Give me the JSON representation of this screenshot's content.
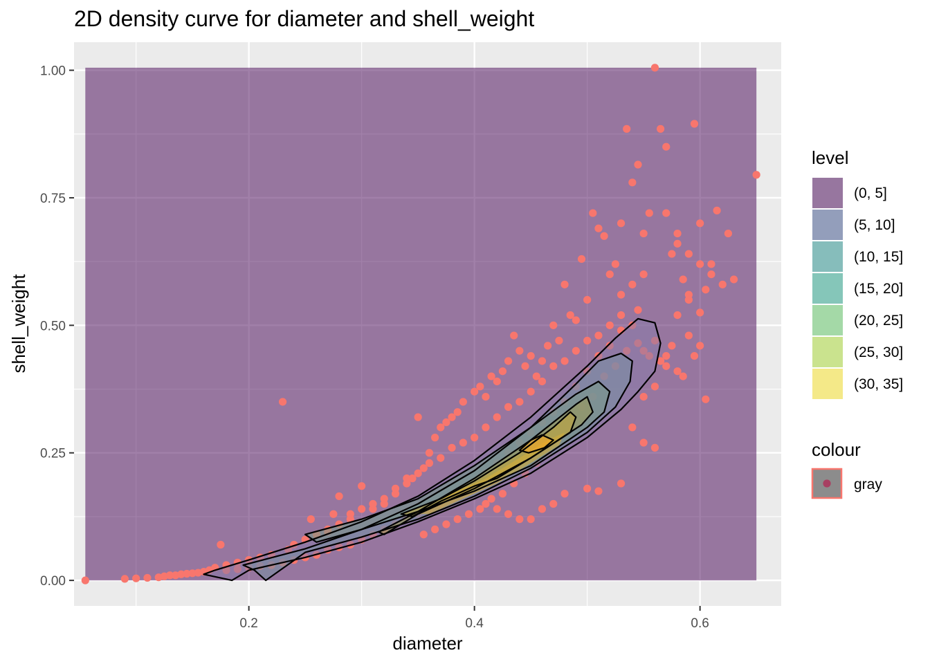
{
  "chart_data": {
    "type": "scatter",
    "title": "2D density curve for diameter and shell_weight",
    "xlabel": "diameter",
    "ylabel": "shell_weight",
    "xlim": [
      0.045,
      0.672
    ],
    "ylim": [
      -0.05,
      1.055
    ],
    "x_ticks": [
      0.2,
      0.4,
      0.6
    ],
    "x_tick_labels": [
      "0.2",
      "0.4",
      "0.6"
    ],
    "y_ticks": [
      0.0,
      0.25,
      0.5,
      0.75,
      1.0
    ],
    "y_tick_labels": [
      "0.00",
      "0.25",
      "0.50",
      "0.75",
      "1.00"
    ],
    "grid": true,
    "panel_background": "#ebebeb",
    "legends": [
      {
        "title": "level",
        "placement": "right",
        "entries": [
          {
            "label": "(0, 5]",
            "color": "#440154"
          },
          {
            "label": "(5, 10]",
            "color": "#3b528b"
          },
          {
            "label": "(10, 15]",
            "color": "#21908c"
          },
          {
            "label": "(15, 20]",
            "color": "#1fa187"
          },
          {
            "label": "(20, 25]",
            "color": "#5dc863"
          },
          {
            "label": "(25, 30]",
            "color": "#aadc32"
          },
          {
            "label": "(30, 35]",
            "color": "#fde725"
          }
        ]
      },
      {
        "title": "colour",
        "placement": "right",
        "entries": [
          {
            "label": "gray",
            "color": "#f8766d"
          }
        ]
      }
    ],
    "density_band": {
      "x_range": [
        0.055,
        0.65
      ],
      "y_range": [
        0.0,
        1.005
      ],
      "color": "#440154",
      "opacity": 0.5
    },
    "point_color": "#f8766d",
    "contours": [
      [
        [
          0.17,
          0.02
        ],
        [
          0.2,
          0.04
        ],
        [
          0.25,
          0.075
        ],
        [
          0.3,
          0.115
        ],
        [
          0.35,
          0.165
        ],
        [
          0.4,
          0.235
        ],
        [
          0.45,
          0.32
        ],
        [
          0.5,
          0.42
        ],
        [
          0.525,
          0.475
        ],
        [
          0.545,
          0.513
        ],
        [
          0.56,
          0.505
        ],
        [
          0.565,
          0.465
        ],
        [
          0.56,
          0.41
        ],
        [
          0.545,
          0.37
        ],
        [
          0.53,
          0.335
        ],
        [
          0.5,
          0.28
        ],
        [
          0.45,
          0.21
        ],
        [
          0.4,
          0.16
        ],
        [
          0.35,
          0.115
        ],
        [
          0.3,
          0.075
        ],
        [
          0.25,
          0.045
        ],
        [
          0.2,
          0.02
        ],
        [
          0.185,
          0.0
        ],
        [
          0.16,
          0.012
        ],
        [
          0.17,
          0.02
        ]
      ],
      [
        [
          0.195,
          0.03
        ],
        [
          0.25,
          0.062
        ],
        [
          0.3,
          0.1
        ],
        [
          0.35,
          0.15
        ],
        [
          0.4,
          0.215
        ],
        [
          0.45,
          0.3
        ],
        [
          0.49,
          0.385
        ],
        [
          0.51,
          0.43
        ],
        [
          0.53,
          0.445
        ],
        [
          0.54,
          0.43
        ],
        [
          0.538,
          0.39
        ],
        [
          0.525,
          0.34
        ],
        [
          0.5,
          0.29
        ],
        [
          0.45,
          0.22
        ],
        [
          0.4,
          0.165
        ],
        [
          0.35,
          0.12
        ],
        [
          0.3,
          0.085
        ],
        [
          0.25,
          0.055
        ],
        [
          0.215,
          0.0
        ],
        [
          0.205,
          0.02
        ],
        [
          0.195,
          0.03
        ]
      ],
      [
        [
          0.25,
          0.09
        ],
        [
          0.3,
          0.12
        ],
        [
          0.35,
          0.16
        ],
        [
          0.4,
          0.225
        ],
        [
          0.45,
          0.3
        ],
        [
          0.49,
          0.365
        ],
        [
          0.51,
          0.39
        ],
        [
          0.52,
          0.37
        ],
        [
          0.515,
          0.33
        ],
        [
          0.5,
          0.3
        ],
        [
          0.45,
          0.225
        ],
        [
          0.4,
          0.175
        ],
        [
          0.35,
          0.135
        ],
        [
          0.3,
          0.1
        ],
        [
          0.26,
          0.075
        ],
        [
          0.25,
          0.09
        ]
      ],
      [
        [
          0.315,
          0.095
        ],
        [
          0.35,
          0.135
        ],
        [
          0.4,
          0.2
        ],
        [
          0.45,
          0.275
        ],
        [
          0.49,
          0.345
        ],
        [
          0.5,
          0.36
        ],
        [
          0.505,
          0.33
        ],
        [
          0.495,
          0.305
        ],
        [
          0.45,
          0.24
        ],
        [
          0.4,
          0.18
        ],
        [
          0.35,
          0.13
        ],
        [
          0.32,
          0.09
        ],
        [
          0.315,
          0.095
        ]
      ],
      [
        [
          0.335,
          0.13
        ],
        [
          0.37,
          0.16
        ],
        [
          0.4,
          0.195
        ],
        [
          0.44,
          0.25
        ],
        [
          0.47,
          0.3
        ],
        [
          0.485,
          0.33
        ],
        [
          0.49,
          0.32
        ],
        [
          0.485,
          0.29
        ],
        [
          0.45,
          0.24
        ],
        [
          0.42,
          0.2
        ],
        [
          0.4,
          0.185
        ],
        [
          0.37,
          0.155
        ],
        [
          0.345,
          0.125
        ],
        [
          0.335,
          0.13
        ]
      ],
      [
        [
          0.35,
          0.13
        ],
        [
          0.38,
          0.17
        ],
        [
          0.41,
          0.2
        ],
        [
          0.44,
          0.24
        ],
        [
          0.465,
          0.275
        ],
        [
          0.48,
          0.29
        ],
        [
          0.475,
          0.265
        ],
        [
          0.45,
          0.23
        ],
        [
          0.42,
          0.19
        ],
        [
          0.385,
          0.155
        ],
        [
          0.36,
          0.13
        ],
        [
          0.35,
          0.13
        ]
      ],
      [
        [
          0.44,
          0.255
        ],
        [
          0.45,
          0.275
        ],
        [
          0.46,
          0.285
        ],
        [
          0.47,
          0.275
        ],
        [
          0.462,
          0.26
        ],
        [
          0.448,
          0.25
        ],
        [
          0.44,
          0.255
        ]
      ]
    ],
    "contour_fills": [
      "#8a7ba9",
      "#7b8fa3",
      "#7a9a8a",
      "#9b9a5a",
      "#c2a640",
      "#d2ac3a",
      "#f5a623"
    ],
    "points": [
      [
        0.055,
        0.0
      ],
      [
        0.09,
        0.003
      ],
      [
        0.1,
        0.004
      ],
      [
        0.11,
        0.005
      ],
      [
        0.12,
        0.006
      ],
      [
        0.125,
        0.008
      ],
      [
        0.13,
        0.01
      ],
      [
        0.135,
        0.01
      ],
      [
        0.14,
        0.012
      ],
      [
        0.145,
        0.013
      ],
      [
        0.15,
        0.014
      ],
      [
        0.155,
        0.015
      ],
      [
        0.16,
        0.017
      ],
      [
        0.165,
        0.02
      ],
      [
        0.17,
        0.025
      ],
      [
        0.175,
        0.07
      ],
      [
        0.18,
        0.03
      ],
      [
        0.19,
        0.035
      ],
      [
        0.2,
        0.04
      ],
      [
        0.21,
        0.045
      ],
      [
        0.22,
        0.05
      ],
      [
        0.23,
        0.35
      ],
      [
        0.235,
        0.06
      ],
      [
        0.24,
        0.07
      ],
      [
        0.25,
        0.08
      ],
      [
        0.255,
        0.12
      ],
      [
        0.26,
        0.09
      ],
      [
        0.27,
        0.1
      ],
      [
        0.275,
        0.13
      ],
      [
        0.28,
        0.165
      ],
      [
        0.29,
        0.12
      ],
      [
        0.3,
        0.185
      ],
      [
        0.31,
        0.14
      ],
      [
        0.32,
        0.15
      ],
      [
        0.33,
        0.17
      ],
      [
        0.34,
        0.19
      ],
      [
        0.345,
        0.2
      ],
      [
        0.35,
        0.32
      ],
      [
        0.355,
        0.22
      ],
      [
        0.36,
        0.25
      ],
      [
        0.365,
        0.28
      ],
      [
        0.37,
        0.3
      ],
      [
        0.375,
        0.31
      ],
      [
        0.38,
        0.32
      ],
      [
        0.385,
        0.33
      ],
      [
        0.39,
        0.35
      ],
      [
        0.4,
        0.37
      ],
      [
        0.405,
        0.38
      ],
      [
        0.41,
        0.36
      ],
      [
        0.415,
        0.4
      ],
      [
        0.42,
        0.39
      ],
      [
        0.425,
        0.41
      ],
      [
        0.43,
        0.43
      ],
      [
        0.435,
        0.48
      ],
      [
        0.44,
        0.45
      ],
      [
        0.445,
        0.42
      ],
      [
        0.45,
        0.44
      ],
      [
        0.455,
        0.4
      ],
      [
        0.46,
        0.43
      ],
      [
        0.465,
        0.46
      ],
      [
        0.47,
        0.5
      ],
      [
        0.475,
        0.47
      ],
      [
        0.48,
        0.58
      ],
      [
        0.485,
        0.52
      ],
      [
        0.49,
        0.51
      ],
      [
        0.495,
        0.63
      ],
      [
        0.5,
        0.55
      ],
      [
        0.505,
        0.72
      ],
      [
        0.51,
        0.69
      ],
      [
        0.515,
        0.675
      ],
      [
        0.52,
        0.6
      ],
      [
        0.525,
        0.62
      ],
      [
        0.53,
        0.7
      ],
      [
        0.535,
        0.885
      ],
      [
        0.54,
        0.78
      ],
      [
        0.545,
        0.815
      ],
      [
        0.55,
        0.68
      ],
      [
        0.555,
        0.72
      ],
      [
        0.56,
        1.005
      ],
      [
        0.565,
        0.885
      ],
      [
        0.57,
        0.85
      ],
      [
        0.575,
        0.64
      ],
      [
        0.58,
        0.66
      ],
      [
        0.585,
        0.59
      ],
      [
        0.59,
        0.55
      ],
      [
        0.595,
        0.895
      ],
      [
        0.6,
        0.7
      ],
      [
        0.605,
        0.355
      ],
      [
        0.61,
        0.62
      ],
      [
        0.615,
        0.725
      ],
      [
        0.62,
        0.58
      ],
      [
        0.625,
        0.68
      ],
      [
        0.63,
        0.59
      ],
      [
        0.65,
        0.795
      ],
      [
        0.53,
        0.56
      ],
      [
        0.54,
        0.5
      ],
      [
        0.55,
        0.45
      ],
      [
        0.56,
        0.47
      ],
      [
        0.57,
        0.42
      ],
      [
        0.58,
        0.41
      ],
      [
        0.59,
        0.48
      ],
      [
        0.6,
        0.525
      ],
      [
        0.52,
        0.46
      ],
      [
        0.51,
        0.44
      ],
      [
        0.5,
        0.41
      ],
      [
        0.49,
        0.38
      ],
      [
        0.48,
        0.35
      ],
      [
        0.47,
        0.33
      ],
      [
        0.46,
        0.31
      ],
      [
        0.45,
        0.29
      ],
      [
        0.44,
        0.27
      ],
      [
        0.43,
        0.25
      ],
      [
        0.42,
        0.23
      ],
      [
        0.41,
        0.21
      ],
      [
        0.4,
        0.19
      ],
      [
        0.39,
        0.18
      ],
      [
        0.38,
        0.16
      ],
      [
        0.37,
        0.15
      ],
      [
        0.36,
        0.14
      ],
      [
        0.35,
        0.13
      ],
      [
        0.34,
        0.12
      ],
      [
        0.33,
        0.11
      ],
      [
        0.32,
        0.1
      ],
      [
        0.31,
        0.09
      ],
      [
        0.3,
        0.08
      ],
      [
        0.29,
        0.07
      ],
      [
        0.28,
        0.065
      ],
      [
        0.27,
        0.06
      ],
      [
        0.26,
        0.05
      ],
      [
        0.25,
        0.045
      ],
      [
        0.24,
        0.04
      ],
      [
        0.23,
        0.035
      ],
      [
        0.22,
        0.03
      ],
      [
        0.21,
        0.028
      ],
      [
        0.2,
        0.025
      ],
      [
        0.19,
        0.022
      ],
      [
        0.18,
        0.02
      ],
      [
        0.53,
        0.49
      ],
      [
        0.545,
        0.465
      ],
      [
        0.555,
        0.44
      ],
      [
        0.565,
        0.43
      ],
      [
        0.575,
        0.46
      ],
      [
        0.585,
        0.4
      ],
      [
        0.595,
        0.44
      ],
      [
        0.6,
        0.46
      ],
      [
        0.605,
        0.57
      ],
      [
        0.61,
        0.6
      ],
      [
        0.6,
        0.62
      ],
      [
        0.59,
        0.64
      ],
      [
        0.58,
        0.68
      ],
      [
        0.57,
        0.72
      ],
      [
        0.55,
        0.6
      ],
      [
        0.54,
        0.58
      ],
      [
        0.53,
        0.52
      ],
      [
        0.52,
        0.5
      ],
      [
        0.51,
        0.48
      ],
      [
        0.5,
        0.47
      ],
      [
        0.49,
        0.45
      ],
      [
        0.48,
        0.43
      ],
      [
        0.47,
        0.42
      ],
      [
        0.46,
        0.39
      ],
      [
        0.45,
        0.37
      ],
      [
        0.44,
        0.35
      ],
      [
        0.43,
        0.34
      ],
      [
        0.42,
        0.32
      ],
      [
        0.41,
        0.3
      ],
      [
        0.4,
        0.28
      ],
      [
        0.39,
        0.27
      ],
      [
        0.38,
        0.26
      ],
      [
        0.37,
        0.24
      ],
      [
        0.36,
        0.23
      ],
      [
        0.35,
        0.21
      ],
      [
        0.34,
        0.2
      ],
      [
        0.33,
        0.18
      ],
      [
        0.32,
        0.16
      ],
      [
        0.31,
        0.15
      ],
      [
        0.3,
        0.14
      ],
      [
        0.29,
        0.13
      ],
      [
        0.28,
        0.11
      ],
      [
        0.27,
        0.095
      ],
      [
        0.53,
        0.19
      ],
      [
        0.51,
        0.175
      ],
      [
        0.5,
        0.18
      ],
      [
        0.48,
        0.17
      ],
      [
        0.47,
        0.15
      ],
      [
        0.46,
        0.14
      ],
      [
        0.45,
        0.12
      ],
      [
        0.44,
        0.12
      ],
      [
        0.43,
        0.13
      ],
      [
        0.42,
        0.14
      ],
      [
        0.41,
        0.15
      ],
      [
        0.54,
        0.3
      ],
      [
        0.55,
        0.27
      ],
      [
        0.56,
        0.26
      ],
      [
        0.55,
        0.36
      ],
      [
        0.56,
        0.38
      ],
      [
        0.57,
        0.44
      ],
      [
        0.58,
        0.52
      ],
      [
        0.59,
        0.56
      ],
      [
        0.545,
        0.53
      ],
      [
        0.535,
        0.45
      ],
      [
        0.525,
        0.42
      ],
      [
        0.515,
        0.4
      ],
      [
        0.505,
        0.36
      ],
      [
        0.495,
        0.34
      ],
      [
        0.485,
        0.3
      ],
      [
        0.475,
        0.27
      ],
      [
        0.465,
        0.25
      ],
      [
        0.455,
        0.23
      ],
      [
        0.445,
        0.21
      ],
      [
        0.435,
        0.19
      ],
      [
        0.425,
        0.17
      ],
      [
        0.415,
        0.16
      ],
      [
        0.405,
        0.14
      ],
      [
        0.395,
        0.13
      ],
      [
        0.385,
        0.12
      ],
      [
        0.375,
        0.11
      ],
      [
        0.365,
        0.1
      ],
      [
        0.355,
        0.09
      ]
    ]
  }
}
